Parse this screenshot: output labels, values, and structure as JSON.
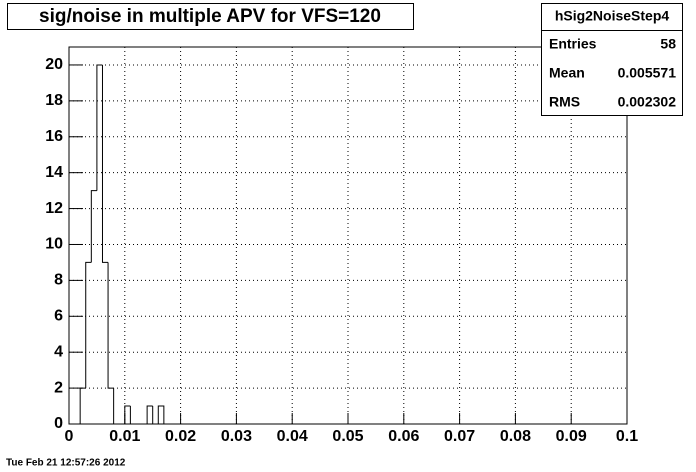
{
  "chart_data": {
    "type": "histogram",
    "title": "sig/noise in multiple APV for VFS=120",
    "bins": [
      0.002,
      0.003,
      0.004,
      0.005,
      0.006,
      0.007,
      0.008,
      0.009,
      0.01,
      0.011,
      0.012,
      0.013,
      0.014,
      0.015,
      0.016,
      0.017
    ],
    "counts": [
      2,
      9,
      13,
      20,
      9,
      2,
      0,
      0,
      1,
      0,
      0,
      0,
      1,
      0,
      1
    ],
    "color": "#000000",
    "xlim": [
      0,
      0.1
    ],
    "xticks": [
      0,
      0.01,
      0.02,
      0.03,
      0.04,
      0.05,
      0.06,
      0.07,
      0.08,
      0.09,
      0.1
    ],
    "ylim": [
      0,
      21
    ],
    "yticks": [
      0,
      2,
      4,
      6,
      8,
      10,
      12,
      14,
      16,
      18,
      20
    ],
    "grid": true,
    "stats": {
      "name": "hSig2NoiseStep4",
      "rows": [
        [
          "Entries",
          "58"
        ],
        [
          "Mean",
          "0.005571"
        ],
        [
          "RMS",
          "0.002302"
        ]
      ]
    },
    "timestamp": "Tue Feb 21 12:57:26 2012"
  }
}
